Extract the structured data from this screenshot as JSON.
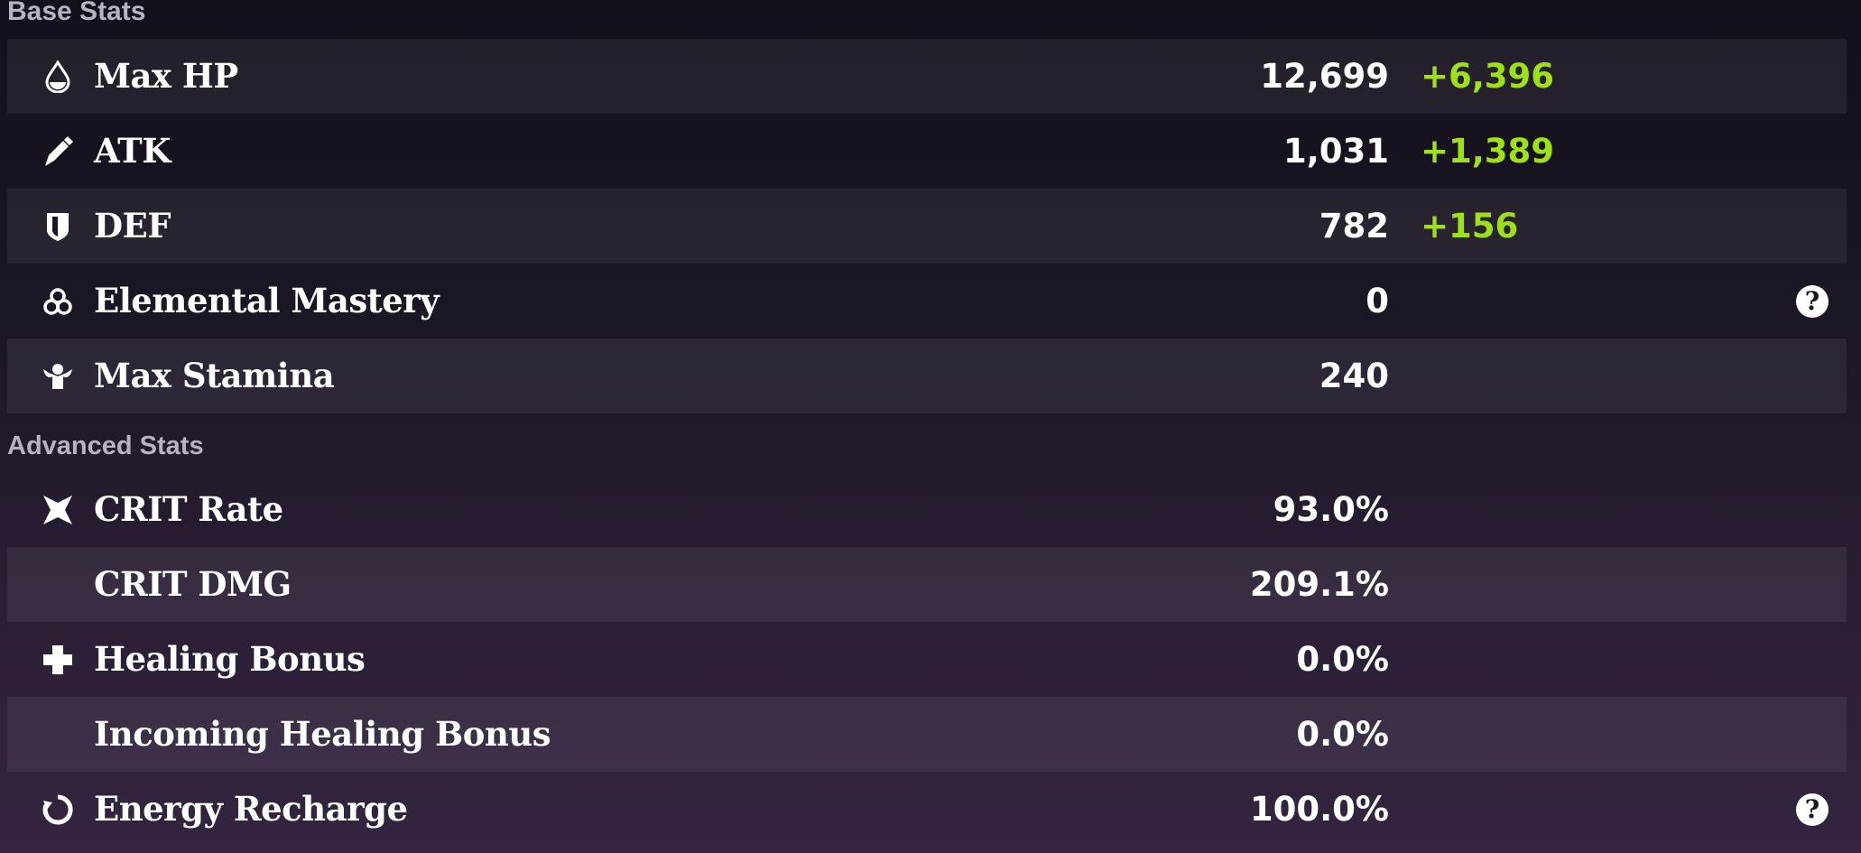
{
  "base_stats": {
    "title": "Base Stats",
    "rows": [
      {
        "icon": "drop-icon",
        "label": "Max HP",
        "value": "12,699",
        "bonus": "+6,396"
      },
      {
        "icon": "sword-icon",
        "label": "ATK",
        "value": "1,031",
        "bonus": "+1,389"
      },
      {
        "icon": "shield-icon",
        "label": "DEF",
        "value": "782",
        "bonus": "+156"
      },
      {
        "icon": "elemental-mastery-icon",
        "label": "Elemental Mastery",
        "value": "0",
        "help": "?"
      },
      {
        "icon": "stamina-icon",
        "label": "Max Stamina",
        "value": "240"
      }
    ]
  },
  "advanced_stats": {
    "title": "Advanced Stats",
    "rows": [
      {
        "icon": "crit-icon",
        "label": "CRIT Rate",
        "value": "93.0%"
      },
      {
        "label": "CRIT DMG",
        "value": "209.1%"
      },
      {
        "icon": "cross-icon",
        "label": "Healing Bonus",
        "value": "0.0%"
      },
      {
        "label": "Incoming Healing Bonus",
        "value": "0.0%"
      },
      {
        "icon": "energy-icon",
        "label": "Energy Recharge",
        "value": "100.0%",
        "help": "?"
      }
    ]
  },
  "colors": {
    "bonus": "#9ee214",
    "text": "#ffffff",
    "section_title": "#b9b2c0"
  }
}
